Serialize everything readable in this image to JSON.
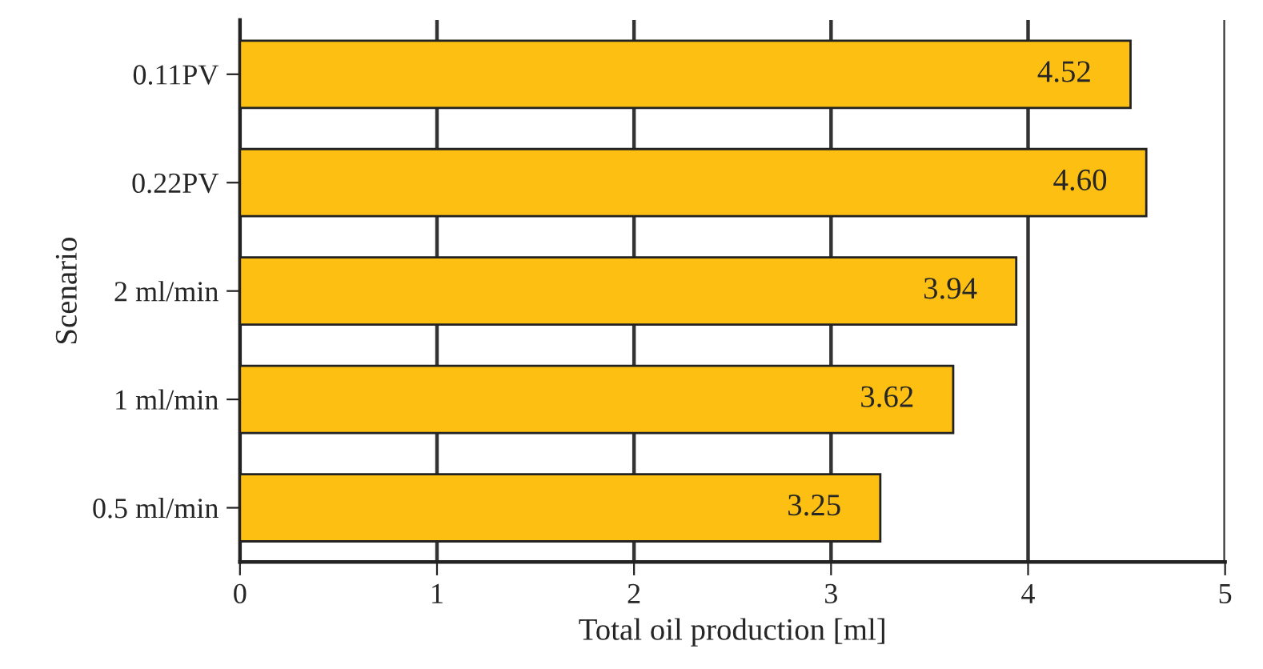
{
  "chart_data": {
    "type": "bar",
    "orientation": "horizontal",
    "xlabel": "Total oil production [ml]",
    "ylabel": "Scenario",
    "categories": [
      "0.11PV",
      "0.22PV",
      "2 ml/min",
      "1 ml/min",
      "0.5 ml/min"
    ],
    "values": [
      4.52,
      4.6,
      3.94,
      3.62,
      3.25
    ],
    "value_labels": [
      "4.52",
      "4.60",
      "3.94",
      "3.62",
      "3.25"
    ],
    "color": "#fcbf12",
    "xlim": [
      0,
      5
    ],
    "xticks": [
      0,
      1,
      2,
      3,
      4,
      5
    ],
    "grid": "x"
  }
}
